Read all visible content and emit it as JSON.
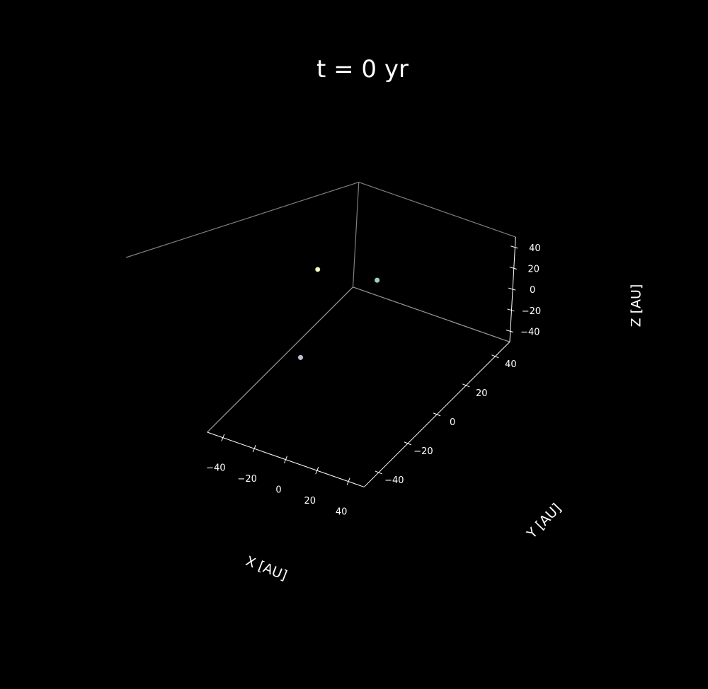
{
  "chart_data": {
    "type": "scatter",
    "projection": "3d",
    "title": "t = 0 yr",
    "xlabel": "X [AU]",
    "ylabel": "Y [AU]",
    "zlabel": "Z [AU]",
    "xlim": [
      -50,
      50
    ],
    "ylim": [
      -50,
      50
    ],
    "zlim": [
      -50,
      50
    ],
    "xticks": [
      -40,
      -20,
      0,
      20,
      40
    ],
    "yticks": [
      -40,
      -20,
      0,
      20,
      40
    ],
    "zticks": [
      -40,
      -20,
      0,
      20,
      40
    ],
    "grid": false,
    "background": "#000000",
    "points": [
      {
        "x": -20.5,
        "y": 33.0,
        "z": -4.5,
        "color": "#8dd3c7"
      },
      {
        "x": -52.0,
        "y": 26.0,
        "z": -1.0,
        "color": "#ffffb3"
      },
      {
        "x": -39.0,
        "y": 2.0,
        "z": -45.0,
        "color": "#bebada"
      }
    ]
  }
}
